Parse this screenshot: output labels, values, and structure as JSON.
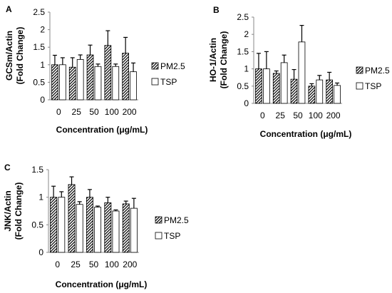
{
  "chart_data": [
    {
      "panel": "A",
      "type": "bar",
      "categories": [
        "0",
        "25",
        "50",
        "100",
        "200"
      ],
      "series": [
        {
          "name": "PM2.5",
          "values": [
            1.0,
            0.93,
            1.28,
            1.55,
            1.33
          ],
          "errors": [
            0.27,
            0.27,
            0.28,
            0.42,
            0.45
          ]
        },
        {
          "name": "TSP",
          "values": [
            1.0,
            1.15,
            0.95,
            0.95,
            0.8
          ],
          "errors": [
            0.2,
            0.13,
            0.07,
            0.07,
            0.25
          ]
        }
      ],
      "ylabel": "GCSm/Actin (Fold Change)",
      "xlabel": "Concentration (μg/mL)",
      "ylim": [
        0,
        2.5
      ],
      "yticks": [
        "0",
        "0.5",
        "1",
        "1.5",
        "2",
        "2.5"
      ],
      "legend_position": "right"
    },
    {
      "panel": "B",
      "type": "bar",
      "categories": [
        "0",
        "25",
        "50",
        "100",
        "200"
      ],
      "series": [
        {
          "name": "PM2.5",
          "values": [
            1.0,
            0.87,
            0.7,
            0.5,
            0.68
          ],
          "errors": [
            0.45,
            0.07,
            0.28,
            0.07,
            0.22
          ]
        },
        {
          "name": "TSP",
          "values": [
            1.0,
            1.18,
            1.78,
            0.68,
            0.52
          ],
          "errors": [
            0.5,
            0.22,
            0.48,
            0.13,
            0.07
          ]
        }
      ],
      "ylabel": "HO-1/Actin (Fold Change)",
      "xlabel": "Concentration (μg/mL)",
      "ylim": [
        0,
        2.5
      ],
      "yticks": [
        "0",
        "0.5",
        "1",
        "1.5",
        "2",
        "2.5"
      ],
      "legend_position": "right"
    },
    {
      "panel": "C",
      "type": "bar",
      "categories": [
        "0",
        "25",
        "50",
        "100",
        "200"
      ],
      "series": [
        {
          "name": "PM2.5",
          "values": [
            1.0,
            1.23,
            1.0,
            0.9,
            0.88
          ],
          "errors": [
            0.2,
            0.14,
            0.14,
            0.1,
            0.05
          ]
        },
        {
          "name": "TSP",
          "values": [
            1.0,
            0.87,
            0.82,
            0.75,
            0.8
          ],
          "errors": [
            0.1,
            0.05,
            0.02,
            0.02,
            0.18
          ]
        }
      ],
      "ylabel": "JNK/Actin (Fold Change)",
      "xlabel": "Concentration (μg/mL)",
      "ylim": [
        0,
        1.5
      ],
      "yticks": [
        "0",
        "0.5",
        "1",
        "1.5"
      ],
      "legend_position": "right"
    }
  ],
  "colors": {
    "bar_outline": "#000000",
    "pm25_hatch": "#000000",
    "tsp_fill": "#ffffff",
    "axis": "#888888",
    "error_bar": "#000000"
  }
}
